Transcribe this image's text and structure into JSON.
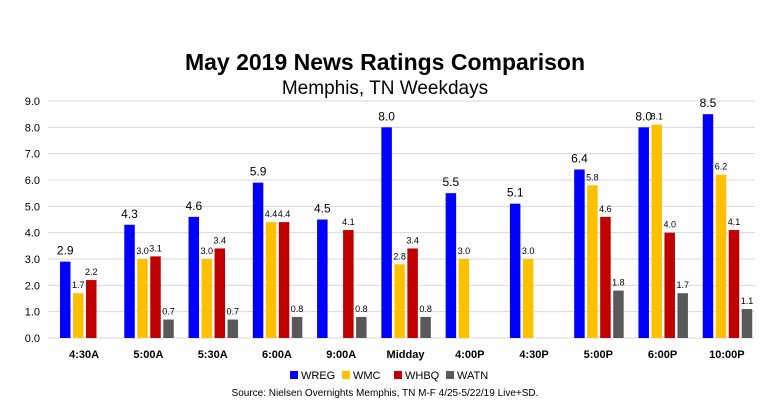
{
  "chart_data": {
    "type": "bar",
    "title": "May 2019 News Ratings Comparison",
    "subtitle": "Memphis, TN Weekdays",
    "categories": [
      "4:30A",
      "5:00A",
      "5:30A",
      "6:00A",
      "9:00A",
      "Midday",
      "4:00P",
      "4:30P",
      "5:00P",
      "6:00P",
      "10:00P"
    ],
    "series": [
      {
        "name": "WREG",
        "color": "#0000ff",
        "values": [
          2.9,
          4.3,
          4.6,
          5.9,
          4.5,
          8.0,
          5.5,
          5.1,
          6.4,
          8.0,
          8.5
        ]
      },
      {
        "name": "WMC",
        "color": "#ffc000",
        "values": [
          1.7,
          3.0,
          3.0,
          4.4,
          null,
          2.8,
          3.0,
          3.0,
          5.8,
          8.1,
          6.2
        ]
      },
      {
        "name": "WHBQ",
        "color": "#c00000",
        "values": [
          2.2,
          3.1,
          3.4,
          4.4,
          4.1,
          3.4,
          null,
          null,
          4.6,
          4.0,
          4.1
        ]
      },
      {
        "name": "WATN",
        "color": "#595959",
        "values": [
          null,
          0.7,
          0.7,
          0.8,
          0.8,
          0.8,
          null,
          null,
          1.8,
          1.7,
          1.1
        ]
      }
    ],
    "ylim": [
      0,
      9
    ],
    "yticks": [
      "0.0",
      "1.0",
      "2.0",
      "3.0",
      "4.0",
      "5.0",
      "6.0",
      "7.0",
      "8.0",
      "9.0"
    ],
    "grid": true,
    "legend_position": "bottom",
    "source": "Source: Nielsen Overnights Memphis, TN M-F 4/25-5/22/19 Live+SD."
  }
}
